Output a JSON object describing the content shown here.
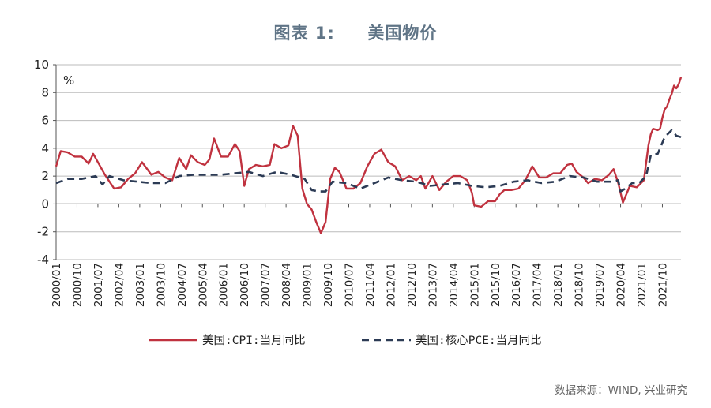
{
  "title": "图表 1:     美国物价",
  "source": "数据来源：WIND, 兴业研究",
  "chart_data": {
    "type": "line",
    "unit_label": "%",
    "ylim": [
      -4,
      10
    ],
    "yticks": [
      "10",
      "8",
      "6",
      "4",
      "2",
      "0",
      "-2",
      "-4"
    ],
    "ytick_values": [
      10,
      8,
      6,
      4,
      2,
      0,
      -2,
      -4
    ],
    "xlim": [
      "2000/01",
      "2022/06"
    ],
    "xtick_labels": [
      "2000/01",
      "2000/10",
      "2001/07",
      "2002/04",
      "2003/01",
      "2003/10",
      "2004/07",
      "2005/04",
      "2006/01",
      "2006/10",
      "2007/07",
      "2008/04",
      "2009/01",
      "2009/10",
      "2010/07",
      "2011/04",
      "2012/01",
      "2012/10",
      "2013/07",
      "2014/04",
      "2015/01",
      "2015/10",
      "2016/07",
      "2017/04",
      "2018/01",
      "2018/10",
      "2019/07",
      "2020/04",
      "2021/01",
      "2021/10"
    ],
    "grid": "horizontal",
    "legend_position": "bottom",
    "colors": {
      "cpi": "#c0323f",
      "pce": "#2c3b55",
      "grid": "#bbbbbb",
      "title": "#5f7486"
    },
    "series": [
      {
        "name": "美国:CPI:当月同比",
        "style": "solid",
        "points": [
          [
            "2000/01",
            2.7
          ],
          [
            "2000/03",
            3.8
          ],
          [
            "2000/06",
            3.7
          ],
          [
            "2000/09",
            3.4
          ],
          [
            "2000/12",
            3.4
          ],
          [
            "2001/03",
            2.9
          ],
          [
            "2001/05",
            3.6
          ],
          [
            "2001/08",
            2.7
          ],
          [
            "2001/10",
            2.1
          ],
          [
            "2001/12",
            1.6
          ],
          [
            "2002/02",
            1.1
          ],
          [
            "2002/05",
            1.2
          ],
          [
            "2002/08",
            1.8
          ],
          [
            "2002/11",
            2.2
          ],
          [
            "2003/02",
            3.0
          ],
          [
            "2003/06",
            2.1
          ],
          [
            "2003/09",
            2.3
          ],
          [
            "2003/12",
            1.9
          ],
          [
            "2004/03",
            1.7
          ],
          [
            "2004/06",
            3.3
          ],
          [
            "2004/09",
            2.5
          ],
          [
            "2004/11",
            3.5
          ],
          [
            "2005/02",
            3.0
          ],
          [
            "2005/05",
            2.8
          ],
          [
            "2005/07",
            3.2
          ],
          [
            "2005/09",
            4.7
          ],
          [
            "2005/12",
            3.4
          ],
          [
            "2006/03",
            3.4
          ],
          [
            "2006/06",
            4.3
          ],
          [
            "2006/08",
            3.8
          ],
          [
            "2006/10",
            1.3
          ],
          [
            "2006/12",
            2.5
          ],
          [
            "2007/03",
            2.8
          ],
          [
            "2007/06",
            2.7
          ],
          [
            "2007/09",
            2.8
          ],
          [
            "2007/11",
            4.3
          ],
          [
            "2008/02",
            4.0
          ],
          [
            "2008/05",
            4.2
          ],
          [
            "2008/07",
            5.6
          ],
          [
            "2008/09",
            4.9
          ],
          [
            "2008/11",
            1.1
          ],
          [
            "2009/01",
            0.0
          ],
          [
            "2009/03",
            -0.4
          ],
          [
            "2009/05",
            -1.3
          ],
          [
            "2009/07",
            -2.1
          ],
          [
            "2009/09",
            -1.3
          ],
          [
            "2009/11",
            1.8
          ],
          [
            "2010/01",
            2.6
          ],
          [
            "2010/03",
            2.3
          ],
          [
            "2010/06",
            1.1
          ],
          [
            "2010/09",
            1.1
          ],
          [
            "2010/12",
            1.5
          ],
          [
            "2011/03",
            2.7
          ],
          [
            "2011/06",
            3.6
          ],
          [
            "2011/09",
            3.9
          ],
          [
            "2011/12",
            3.0
          ],
          [
            "2012/03",
            2.7
          ],
          [
            "2012/06",
            1.7
          ],
          [
            "2012/09",
            2.0
          ],
          [
            "2012/12",
            1.7
          ],
          [
            "2013/02",
            2.0
          ],
          [
            "2013/04",
            1.1
          ],
          [
            "2013/07",
            2.0
          ],
          [
            "2013/10",
            1.0
          ],
          [
            "2014/01",
            1.6
          ],
          [
            "2014/04",
            2.0
          ],
          [
            "2014/07",
            2.0
          ],
          [
            "2014/10",
            1.7
          ],
          [
            "2014/12",
            0.8
          ],
          [
            "2015/01",
            -0.1
          ],
          [
            "2015/04",
            -0.2
          ],
          [
            "2015/07",
            0.2
          ],
          [
            "2015/10",
            0.2
          ],
          [
            "2015/12",
            0.7
          ],
          [
            "2016/02",
            1.0
          ],
          [
            "2016/05",
            1.0
          ],
          [
            "2016/08",
            1.1
          ],
          [
            "2016/11",
            1.7
          ],
          [
            "2017/02",
            2.7
          ],
          [
            "2017/05",
            1.9
          ],
          [
            "2017/08",
            1.9
          ],
          [
            "2017/11",
            2.2
          ],
          [
            "2018/02",
            2.2
          ],
          [
            "2018/05",
            2.8
          ],
          [
            "2018/07",
            2.9
          ],
          [
            "2018/09",
            2.3
          ],
          [
            "2018/12",
            1.9
          ],
          [
            "2019/02",
            1.5
          ],
          [
            "2019/05",
            1.8
          ],
          [
            "2019/08",
            1.7
          ],
          [
            "2019/11",
            2.1
          ],
          [
            "2020/01",
            2.5
          ],
          [
            "2020/03",
            1.5
          ],
          [
            "2020/05",
            0.1
          ],
          [
            "2020/08",
            1.3
          ],
          [
            "2020/11",
            1.2
          ],
          [
            "2021/02",
            1.7
          ],
          [
            "2021/04",
            4.2
          ],
          [
            "2021/05",
            5.0
          ],
          [
            "2021/06",
            5.4
          ],
          [
            "2021/08",
            5.3
          ],
          [
            "2021/09",
            5.4
          ],
          [
            "2021/10",
            6.2
          ],
          [
            "2021/11",
            6.8
          ],
          [
            "2021/12",
            7.0
          ],
          [
            "2022/01",
            7.5
          ],
          [
            "2022/02",
            7.9
          ],
          [
            "2022/03",
            8.5
          ],
          [
            "2022/04",
            8.3
          ],
          [
            "2022/05",
            8.6
          ],
          [
            "2022/06",
            9.1
          ]
        ]
      },
      {
        "name": "美国:核心PCE:当月同比",
        "style": "dashed",
        "points": [
          [
            "2000/01",
            1.5
          ],
          [
            "2000/06",
            1.8
          ],
          [
            "2000/12",
            1.8
          ],
          [
            "2001/06",
            2.0
          ],
          [
            "2001/09",
            1.4
          ],
          [
            "2001/12",
            2.0
          ],
          [
            "2002/06",
            1.7
          ],
          [
            "2002/12",
            1.6
          ],
          [
            "2003/06",
            1.5
          ],
          [
            "2003/12",
            1.5
          ],
          [
            "2004/06",
            2.0
          ],
          [
            "2004/12",
            2.1
          ],
          [
            "2005/06",
            2.1
          ],
          [
            "2005/12",
            2.1
          ],
          [
            "2006/06",
            2.2
          ],
          [
            "2006/12",
            2.3
          ],
          [
            "2007/06",
            2.0
          ],
          [
            "2007/12",
            2.3
          ],
          [
            "2008/06",
            2.1
          ],
          [
            "2008/12",
            1.8
          ],
          [
            "2009/03",
            1.0
          ],
          [
            "2009/06",
            0.9
          ],
          [
            "2009/09",
            0.9
          ],
          [
            "2009/12",
            1.6
          ],
          [
            "2010/06",
            1.5
          ],
          [
            "2010/12",
            1.1
          ],
          [
            "2011/06",
            1.5
          ],
          [
            "2011/12",
            1.9
          ],
          [
            "2012/06",
            1.7
          ],
          [
            "2012/12",
            1.6
          ],
          [
            "2013/06",
            1.3
          ],
          [
            "2013/12",
            1.4
          ],
          [
            "2014/06",
            1.5
          ],
          [
            "2014/12",
            1.3
          ],
          [
            "2015/06",
            1.2
          ],
          [
            "2015/12",
            1.3
          ],
          [
            "2016/06",
            1.6
          ],
          [
            "2016/12",
            1.7
          ],
          [
            "2017/06",
            1.5
          ],
          [
            "2017/12",
            1.6
          ],
          [
            "2018/06",
            2.0
          ],
          [
            "2018/12",
            1.9
          ],
          [
            "2019/06",
            1.6
          ],
          [
            "2019/12",
            1.6
          ],
          [
            "2020/03",
            1.7
          ],
          [
            "2020/04",
            0.9
          ],
          [
            "2020/06",
            1.1
          ],
          [
            "2020/09",
            1.5
          ],
          [
            "2020/12",
            1.5
          ],
          [
            "2021/03",
            2.0
          ],
          [
            "2021/05",
            3.5
          ],
          [
            "2021/08",
            3.6
          ],
          [
            "2021/11",
            4.8
          ],
          [
            "2022/02",
            5.3
          ],
          [
            "2022/04",
            4.9
          ],
          [
            "2022/06",
            4.8
          ]
        ]
      }
    ]
  }
}
